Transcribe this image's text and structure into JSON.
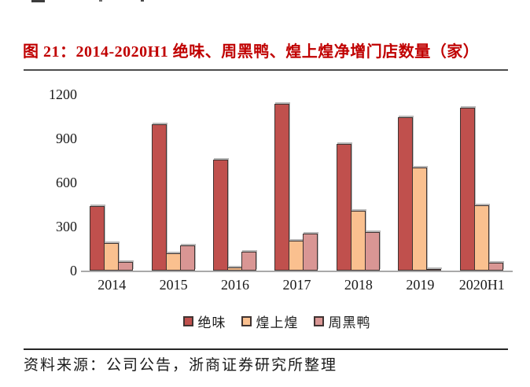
{
  "figure": {
    "title": "图 21：2014-2020H1 绝味、周黑鸭、煌上煌净增门店数量（家）",
    "source_note": "资料来源：公司公告，浙商证券研究所整理",
    "colors": {
      "title_red": "#c00000",
      "title_divider": "#4d4d4d",
      "footer_divider": "#262626",
      "axis_line": "#a9a9a9",
      "bar_border": "#403432",
      "text": "#1a1a1a"
    }
  },
  "chart_data": {
    "type": "bar",
    "title": "2014-2020H1 绝味、周黑鸭、煌上煌净增门店数量（家）",
    "unit": "家",
    "categories": [
      "2014",
      "2015",
      "2016",
      "2017",
      "2018",
      "2019",
      "2020H1"
    ],
    "series": [
      {
        "name": "绝味",
        "color": "#c0504d",
        "values": [
          440,
          995,
          755,
          1135,
          865,
          1045,
          1110
        ]
      },
      {
        "name": "煌上煌",
        "color": "#fac08f",
        "values": [
          190,
          120,
          20,
          205,
          405,
          700,
          445
        ]
      },
      {
        "name": "周黑鸭",
        "color": "#d99694",
        "values": [
          60,
          170,
          130,
          250,
          260,
          10,
          55
        ]
      }
    ],
    "xlabel": "",
    "ylabel": "",
    "ylim": [
      0,
      1200
    ],
    "yticks": [
      0,
      300,
      600,
      900,
      1200
    ],
    "grid": false,
    "legend_position": "bottom-center"
  }
}
